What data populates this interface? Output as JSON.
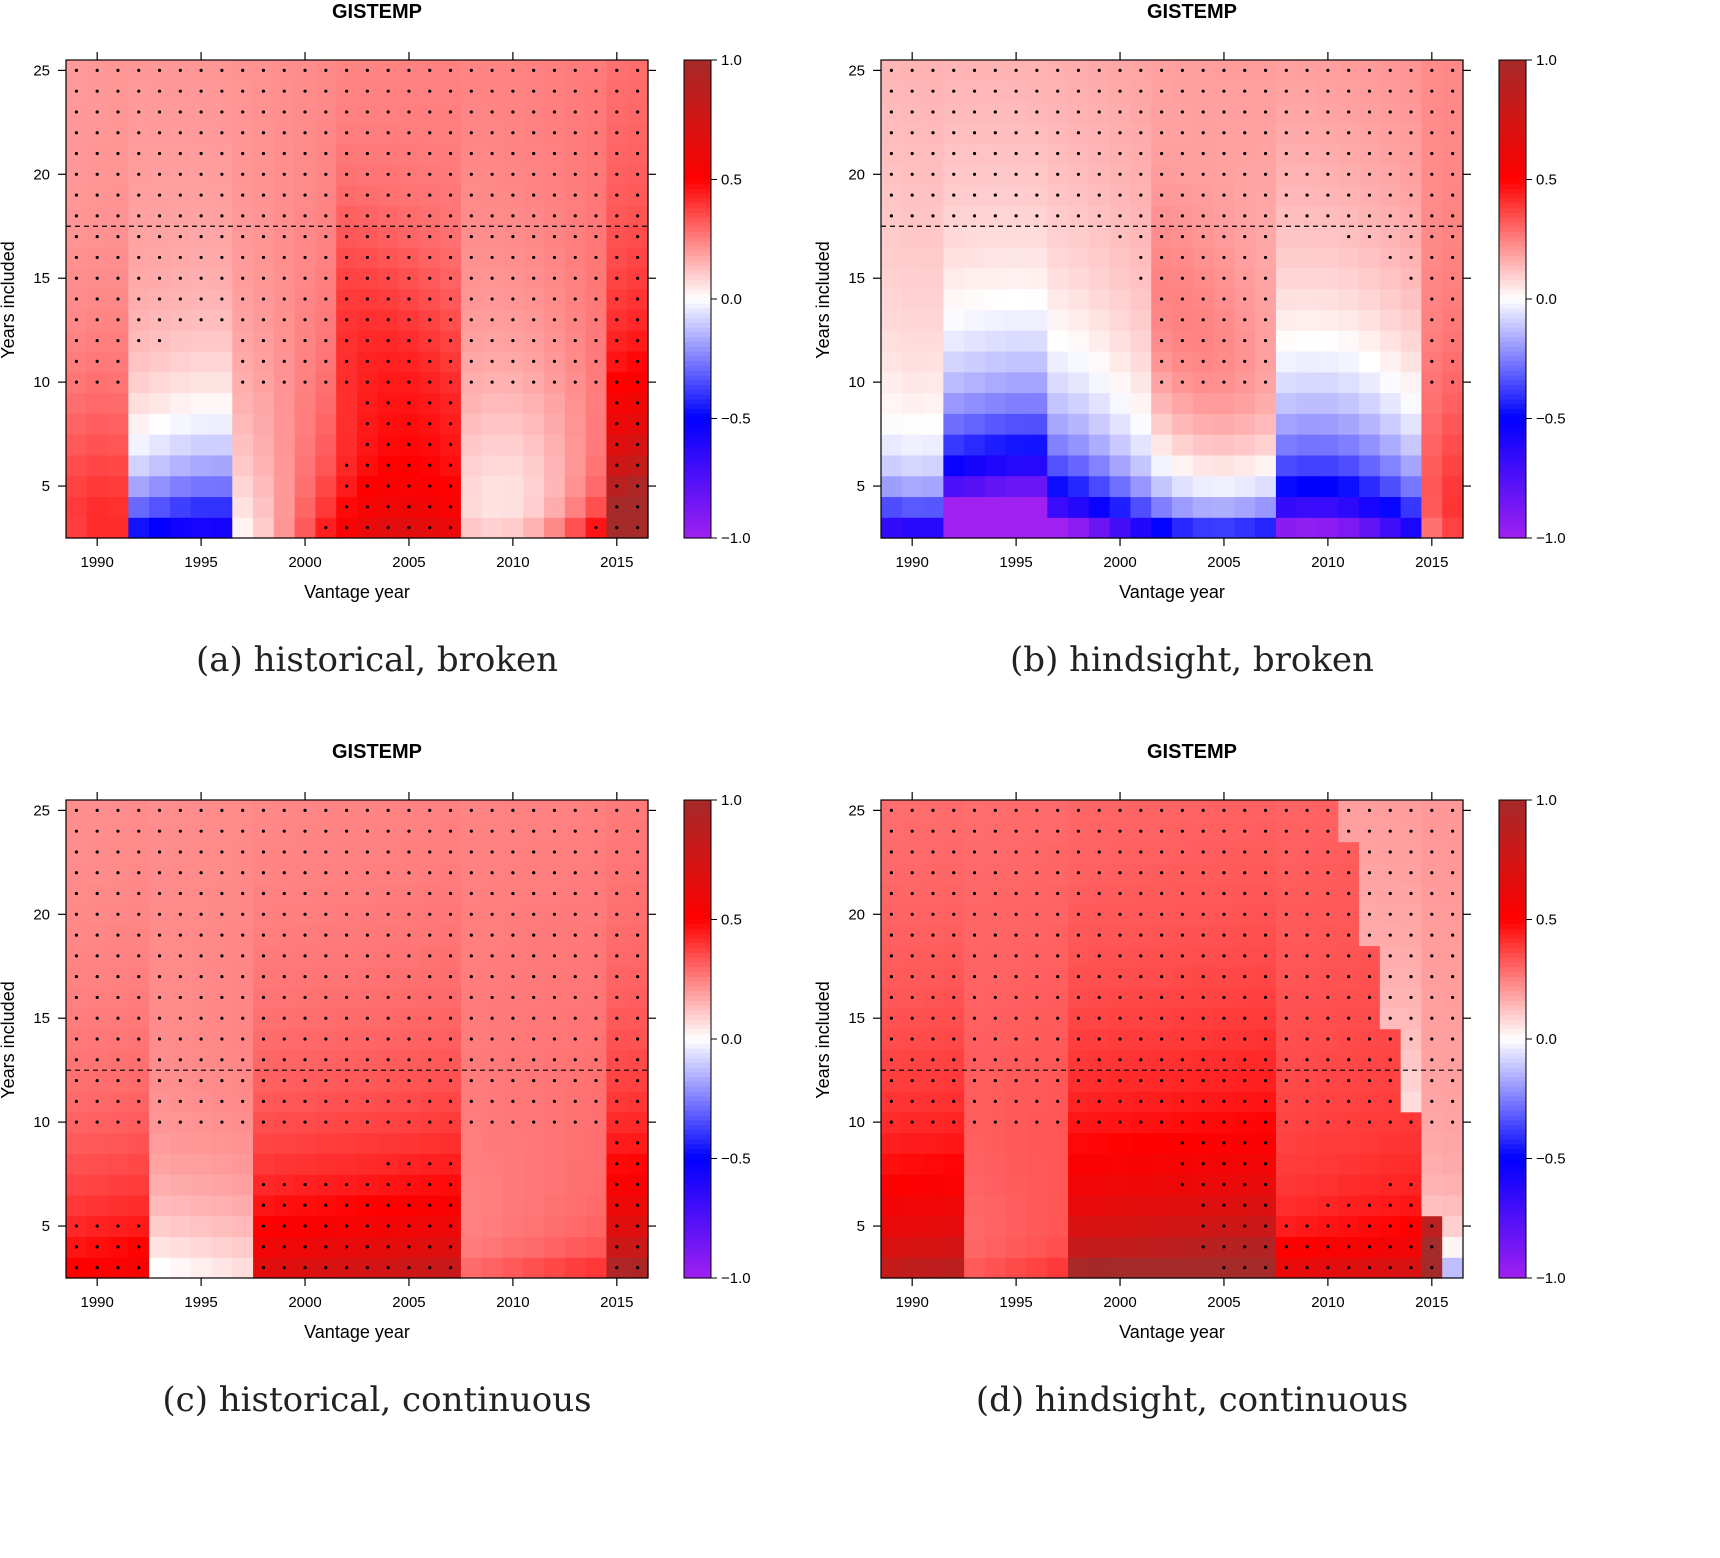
{
  "chart_data": [
    {
      "type": "heatmap",
      "title": "GISTEMP",
      "caption": "(a) historical, broken",
      "xlabel": "Vantage year",
      "ylabel": "Years included",
      "xlim": [
        1988.5,
        2016.5
      ],
      "ylim": [
        2.5,
        25.5
      ],
      "x_ticks": [
        "1990",
        "1995",
        "2000",
        "2005",
        "2010",
        "2015"
      ],
      "y_ticks": [
        "5",
        "10",
        "15",
        "20",
        "25"
      ],
      "colorbar_ticks": [
        "1.0",
        "0.5",
        "0.0",
        "−0.5",
        "−1.0"
      ],
      "colorbar_range": [
        -1.0,
        1.0
      ],
      "threshold_years": 17.5,
      "seed": 11,
      "mode": "broken",
      "hindsight": false
    },
    {
      "type": "heatmap",
      "title": "GISTEMP",
      "caption": "(b) hindsight, broken",
      "xlabel": "Vantage year",
      "ylabel": "Years included",
      "xlim": [
        1988.5,
        2016.5
      ],
      "ylim": [
        2.5,
        25.5
      ],
      "x_ticks": [
        "1990",
        "1995",
        "2000",
        "2005",
        "2010",
        "2015"
      ],
      "y_ticks": [
        "5",
        "10",
        "15",
        "20",
        "25"
      ],
      "colorbar_ticks": [
        "1.0",
        "0.5",
        "0.0",
        "−0.5",
        "−1.0"
      ],
      "colorbar_range": [
        -1.0,
        1.0
      ],
      "threshold_years": 17.5,
      "seed": 23,
      "mode": "broken",
      "hindsight": true
    },
    {
      "type": "heatmap",
      "title": "GISTEMP",
      "caption": "(c) historical, continuous",
      "xlabel": "Vantage year",
      "ylabel": "Years included",
      "xlim": [
        1988.5,
        2016.5
      ],
      "ylim": [
        2.5,
        25.5
      ],
      "x_ticks": [
        "1990",
        "1995",
        "2000",
        "2005",
        "2010",
        "2015"
      ],
      "y_ticks": [
        "5",
        "10",
        "15",
        "20",
        "25"
      ],
      "colorbar_ticks": [
        "1.0",
        "0.5",
        "0.0",
        "−0.5",
        "−1.0"
      ],
      "colorbar_range": [
        -1.0,
        1.0
      ],
      "threshold_years": 12.5,
      "seed": 37,
      "mode": "continuous",
      "hindsight": false
    },
    {
      "type": "heatmap",
      "title": "GISTEMP",
      "caption": "(d) hindsight, continuous",
      "xlabel": "Vantage year",
      "ylabel": "Years included",
      "xlim": [
        1988.5,
        2016.5
      ],
      "ylim": [
        2.5,
        25.5
      ],
      "x_ticks": [
        "1990",
        "1995",
        "2000",
        "2005",
        "2010",
        "2015"
      ],
      "y_ticks": [
        "5",
        "10",
        "15",
        "20",
        "25"
      ],
      "colorbar_ticks": [
        "1.0",
        "0.5",
        "0.0",
        "−0.5",
        "−1.0"
      ],
      "colorbar_range": [
        -1.0,
        1.0
      ],
      "threshold_years": 12.5,
      "seed": 53,
      "mode": "continuous",
      "hindsight": true
    }
  ]
}
